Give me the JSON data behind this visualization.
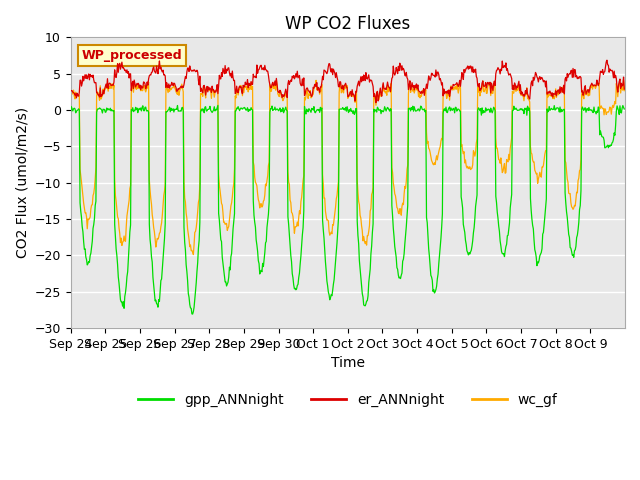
{
  "title": "WP CO2 Fluxes",
  "xlabel": "Time",
  "ylabel_text": "CO2 Flux (umol/m2/s)",
  "ylim": [
    -30,
    10
  ],
  "bg_color": "#e8e8e8",
  "fig_bg": "#ffffff",
  "legend_entries": [
    "gpp_ANNnight",
    "er_ANNnight",
    "wc_gf"
  ],
  "legend_colors": [
    "#00dd00",
    "#dd0000",
    "#ffaa00"
  ],
  "annotation_text": "WP_processed",
  "annotation_color": "#cc0000",
  "annotation_bg": "#ffffcc",
  "annotation_border": "#cc8800",
  "tick_labels": [
    "Sep 24",
    "Sep 25",
    "Sep 26",
    "Sep 27",
    "Sep 28",
    "Sep 29",
    "Sep 30",
    "Oct 1",
    "Oct 2",
    "Oct 3",
    "Oct 4",
    "Oct 5",
    "Oct 6",
    "Oct 7",
    "Oct 8",
    "Oct 9"
  ],
  "points_per_day": 48,
  "n_days": 16
}
